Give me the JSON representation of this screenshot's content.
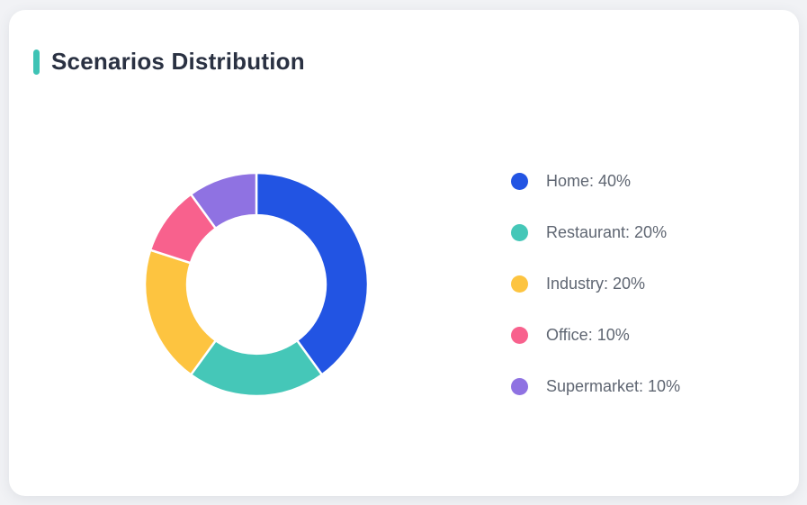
{
  "page": {
    "background_color": "#F1F2F5"
  },
  "card": {
    "title": "Scenarios Distribution",
    "accent_color": "#3EC3B5",
    "background_color": "#FFFFFF"
  },
  "chart_data": {
    "type": "pie",
    "subtype": "donut",
    "title": "Scenarios Distribution",
    "categories": [
      "Home",
      "Restaurant",
      "Industry",
      "Office",
      "Supermarket"
    ],
    "values": [
      40,
      20,
      20,
      10,
      10
    ],
    "unit": "%",
    "colors": [
      "#2254E3",
      "#45C7B8",
      "#FDC440",
      "#F8618D",
      "#8F72E2"
    ],
    "legend_labels": [
      "Home: 40%",
      "Restaurant: 20%",
      "Industry: 20%",
      "Office: 10%",
      "Supermarket: 10%"
    ],
    "start_angle": "top",
    "direction": "clockwise",
    "inner_radius_ratio": 0.62,
    "slice_border_color": "#FFFFFF",
    "slice_border_width": 2.5,
    "legend_position": "right",
    "legend_text_color": "#5F6672"
  }
}
